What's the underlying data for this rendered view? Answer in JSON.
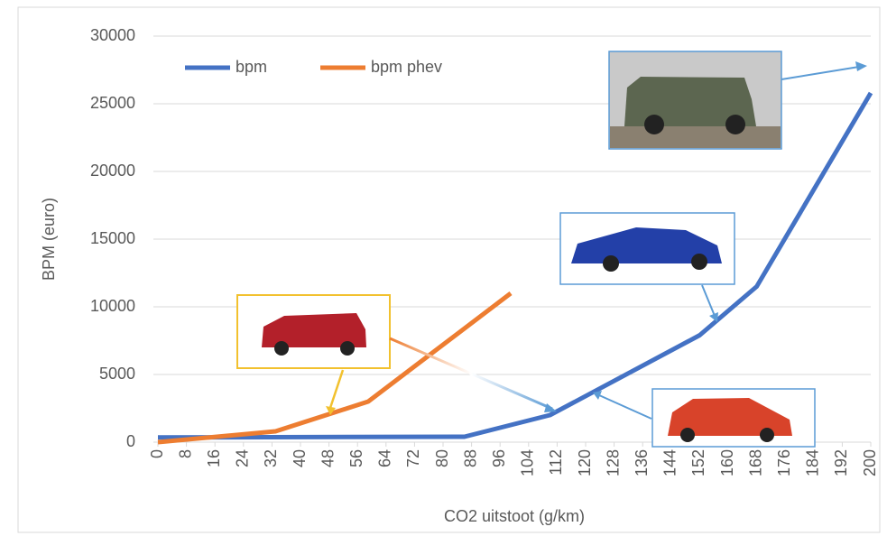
{
  "chart_data": {
    "type": "line",
    "y_label": "BPM (euro)",
    "x_label": "CO2 uitstoot (g/km)",
    "xlim": [
      0,
      200
    ],
    "xticks": [
      0,
      8,
      16,
      24,
      32,
      40,
      48,
      56,
      64,
      72,
      80,
      88,
      96,
      104,
      112,
      120,
      128,
      136,
      144,
      152,
      160,
      168,
      176,
      184,
      192,
      200
    ],
    "ylim": [
      0,
      30000
    ],
    "yticks": [
      0,
      5000,
      10000,
      15000,
      20000,
      25000,
      30000
    ],
    "grid": true,
    "legend": "top-left",
    "series": [
      {
        "name": "bpm",
        "color": "#4472c4",
        "x": [
          0,
          86,
          110,
          152,
          168,
          200
        ],
        "values": [
          350,
          400,
          2000,
          7900,
          11500,
          25800
        ]
      },
      {
        "name": "bpm phev",
        "color": "#ed7d31",
        "x": [
          0,
          33,
          59,
          99
        ],
        "values": [
          0,
          800,
          3000,
          11000
        ]
      }
    ]
  }
}
